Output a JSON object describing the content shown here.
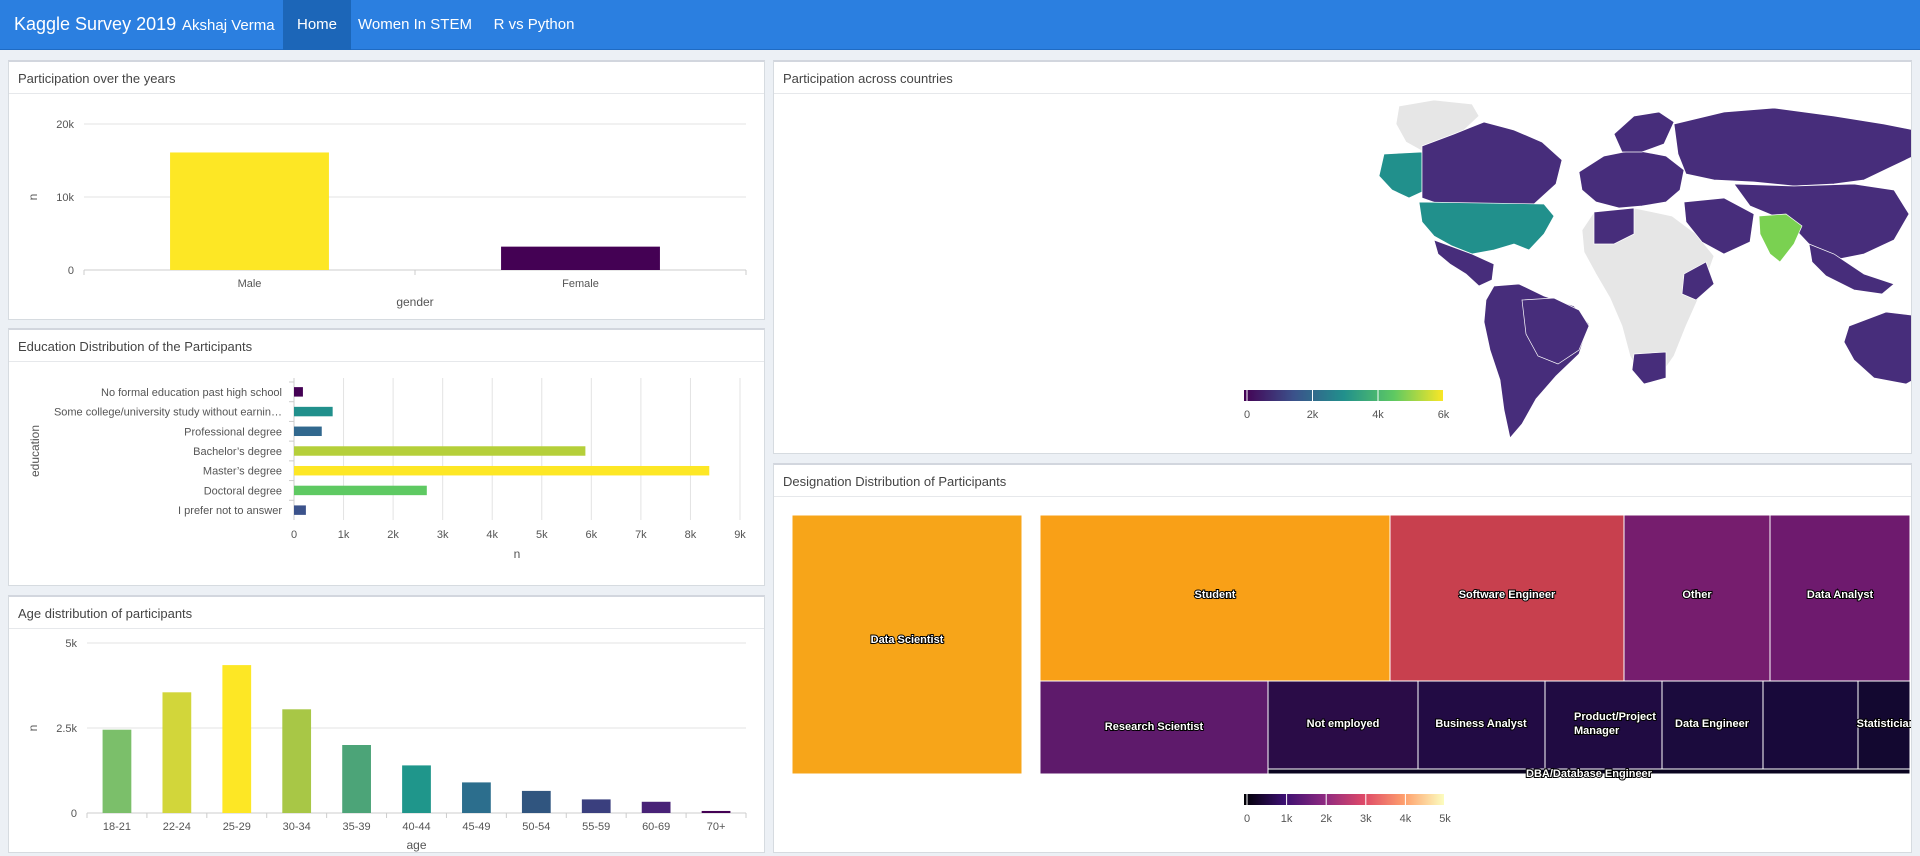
{
  "header": {
    "brand": "Kaggle Survey 2019",
    "author": "Akshaj Verma",
    "tabs": [
      "Home",
      "Women In STEM",
      "R vs Python"
    ],
    "active_tab": "Home",
    "bg_color": "#2b7fe0"
  },
  "participation": {
    "title": "Participation over the years",
    "chart_data": {
      "type": "bar",
      "categories": [
        "Male",
        "Female"
      ],
      "values": [
        16100,
        3200
      ],
      "colors": [
        "#fde725",
        "#440154"
      ],
      "xlabel": "gender",
      "ylabel": "n",
      "ylim": [
        0,
        20000
      ],
      "yticks": [
        "0",
        "10k",
        "20k"
      ],
      "grid": true
    }
  },
  "education": {
    "title": "Education Distribution of the Participants",
    "chart_data": {
      "type": "bar",
      "orientation": "horizontal",
      "categories": [
        "No formal education past high school",
        "Some college/university study without earnin…",
        "Professional degree",
        "Bachelor’s degree",
        "Master’s degree",
        "Doctoral degree",
        "I prefer not to answer"
      ],
      "values": [
        180,
        780,
        560,
        5880,
        8380,
        2680,
        240
      ],
      "colors": [
        "#440154",
        "#21908c",
        "#31688e",
        "#b5cf3a",
        "#fde725",
        "#5ec962",
        "#3b528b"
      ],
      "xlabel": "n",
      "ylabel": "education",
      "xlim": [
        0,
        9000
      ],
      "xticks": [
        "0",
        "1k",
        "2k",
        "3k",
        "4k",
        "5k",
        "6k",
        "7k",
        "8k",
        "9k"
      ],
      "grid": true
    }
  },
  "age": {
    "title": "Age distribution of participants",
    "chart_data": {
      "type": "bar",
      "categories": [
        "18-21",
        "22-24",
        "25-29",
        "30-34",
        "35-39",
        "40-44",
        "45-49",
        "50-54",
        "55-59",
        "60-69",
        "70+"
      ],
      "values": [
        2450,
        3550,
        4350,
        3050,
        2000,
        1400,
        900,
        650,
        400,
        330,
        60
      ],
      "colors": [
        "#7bbf6a",
        "#d2d63a",
        "#fde725",
        "#a8c746",
        "#4ca478",
        "#1f968b",
        "#2c6e8d",
        "#30557f",
        "#3a3f7e",
        "#482277",
        "#440154"
      ],
      "xlabel": "age",
      "ylabel": "n",
      "ylim": [
        0,
        5000
      ],
      "yticks": [
        "0",
        "2.5k",
        "5k"
      ],
      "grid": true
    }
  },
  "map": {
    "title": "Participation across countries",
    "colorbar": {
      "ticks": [
        "0",
        "2k",
        "4k",
        "6k"
      ],
      "colors": [
        "#440154",
        "#3b528b",
        "#21908c",
        "#5ec962",
        "#fde725"
      ]
    },
    "colors": {
      "none": "#e6e6e6",
      "low": "#472d7b",
      "mid": "#21908c",
      "high": "#7ad151"
    }
  },
  "designation": {
    "title": "Designation Distribution of Participants",
    "chart_data": {
      "type": "treemap",
      "items": [
        {
          "label": "Data Scientist",
          "color": "#f7a519"
        },
        {
          "label": "Student",
          "color": "#f9a017"
        },
        {
          "label": "Software Engineer",
          "color": "#c8404e"
        },
        {
          "label": "Other",
          "color": "#761d6e"
        },
        {
          "label": "Data Analyst",
          "color": "#6e1a6e"
        },
        {
          "label": "Research Scientist",
          "color": "#5e1a6b"
        },
        {
          "label": "Not employed",
          "color": "#2a0c47"
        },
        {
          "label": "Business Analyst",
          "color": "#220b44"
        },
        {
          "label": "Product/Project Manager",
          "color": "#200b42"
        },
        {
          "label": "Data Engineer",
          "color": "#1b0b3d"
        },
        {
          "label": "",
          "color": "#18093a"
        },
        {
          "label": "Statistician",
          "color": "#130830"
        },
        {
          "label": "DBA/Database Engineer",
          "color": "#0a0420"
        }
      ],
      "colorbar": {
        "ticks": [
          "0",
          "1k",
          "2k",
          "3k",
          "4k",
          "5k"
        ],
        "colors": [
          "#000004",
          "#3b0f70",
          "#8c2981",
          "#de4968",
          "#fe9f6d",
          "#fcfdbf"
        ]
      }
    }
  }
}
